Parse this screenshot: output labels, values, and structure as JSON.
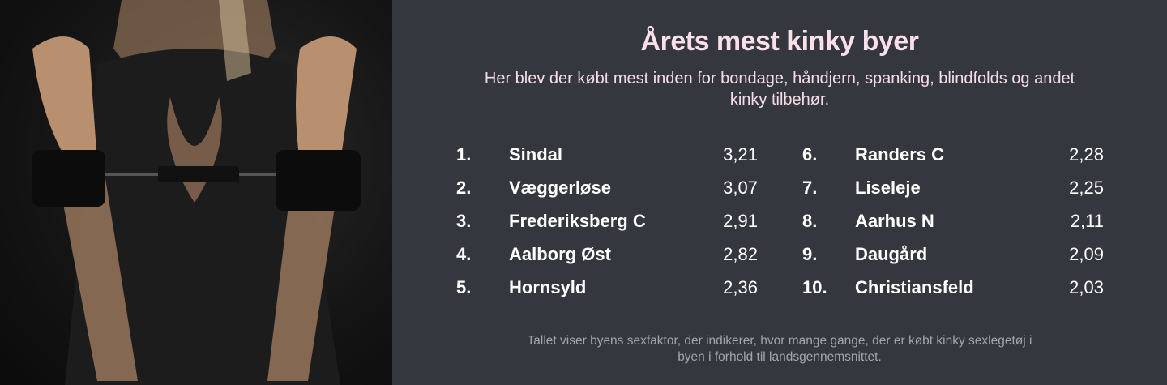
{
  "title": "Årets mest kinky byer",
  "subtitle": "Her blev der købt mest inden for bondage, håndjern, spanking, blindfolds og andet kinky tilbehør.",
  "ranking": [
    {
      "rank": "1.",
      "city": "Sindal",
      "value": "3,21"
    },
    {
      "rank": "2.",
      "city": "Væggerløse",
      "value": "3,07"
    },
    {
      "rank": "3.",
      "city": "Frederiksberg C",
      "value": "2,91"
    },
    {
      "rank": "4.",
      "city": "Aalborg Øst",
      "value": "2,82"
    },
    {
      "rank": "5.",
      "city": "Hornsyld",
      "value": "2,36"
    },
    {
      "rank": "6.",
      "city": "Randers C",
      "value": "2,28"
    },
    {
      "rank": "7.",
      "city": "Liseleje",
      "value": "2,25"
    },
    {
      "rank": "8.",
      "city": "Aarhus N",
      "value": "2,11"
    },
    {
      "rank": "9.",
      "city": "Daugård",
      "value": "2,09"
    },
    {
      "rank": "10.",
      "city": "Christiansfeld",
      "value": "2,03"
    }
  ],
  "footer": "Tallet viser byens sexfaktor, der indikerer, hvor mange gange, der er købt kinky sexlegetøj i byen i forhold til landsgennemsnittet.",
  "colors": {
    "background": "#34373d",
    "title": "#fbe0ea",
    "footer": "#a3a6ab"
  }
}
